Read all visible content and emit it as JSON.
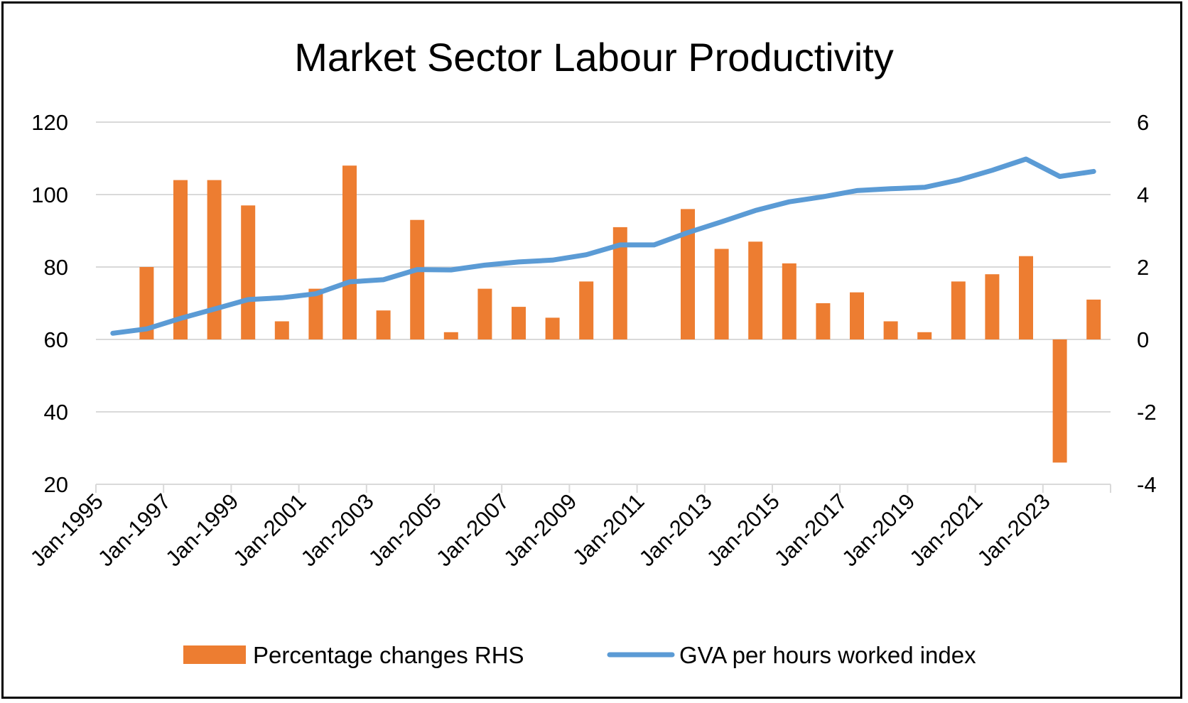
{
  "chart_data": {
    "type": "bar",
    "title": "Market Sector Labour Productivity",
    "x_tick_labels": [
      "Jan-1995",
      "Jan-1997",
      "Jan-1999",
      "Jan-2001",
      "Jan-2003",
      "Jan-2005",
      "Jan-2007",
      "Jan-2009",
      "Jan-2011",
      "Jan-2013",
      "Jan-2015",
      "Jan-2017",
      "Jan-2019",
      "Jan-2021",
      "Jan-2023"
    ],
    "categories": [
      "1995",
      "1996",
      "1997",
      "1998",
      "1999",
      "2000",
      "2001",
      "2002",
      "2003",
      "2004",
      "2005",
      "2006",
      "2007",
      "2008",
      "2009",
      "2010",
      "2011",
      "2012",
      "2013",
      "2014",
      "2015",
      "2016",
      "2017",
      "2018",
      "2019",
      "2020",
      "2021",
      "2022",
      "2023",
      "2024"
    ],
    "y_left": {
      "ylim": [
        20,
        120
      ],
      "ticks": [
        20,
        40,
        60,
        80,
        100,
        120
      ]
    },
    "y_right": {
      "ylim": [
        -4,
        6
      ],
      "ticks": [
        -4,
        -2,
        0,
        2,
        4,
        6
      ]
    },
    "grid": true,
    "legend_position": "bottom",
    "series": [
      {
        "name": "Percentage changes RHS",
        "type": "bar",
        "axis": "right",
        "color": "#ED7D31",
        "values": [
          null,
          2.0,
          4.4,
          4.4,
          3.7,
          0.5,
          1.4,
          4.8,
          0.8,
          3.3,
          0.2,
          1.4,
          0.9,
          0.6,
          1.6,
          3.1,
          0.0,
          3.6,
          2.5,
          2.7,
          2.1,
          1.0,
          1.3,
          0.5,
          0.2,
          1.6,
          1.8,
          2.3,
          -3.4,
          1.1
        ]
      },
      {
        "name": "GVA per hours worked index",
        "type": "line",
        "axis": "left",
        "color": "#5B9BD5",
        "values": [
          61.7,
          62.9,
          65.8,
          68.4,
          71.0,
          71.5,
          72.6,
          75.9,
          76.5,
          79.3,
          79.2,
          80.5,
          81.4,
          81.9,
          83.4,
          86.1,
          86.1,
          89.5,
          92.5,
          95.6,
          98.0,
          99.4,
          101.1,
          101.6,
          102.0,
          104.0,
          106.7,
          109.8,
          105.0,
          106.4
        ]
      }
    ]
  }
}
